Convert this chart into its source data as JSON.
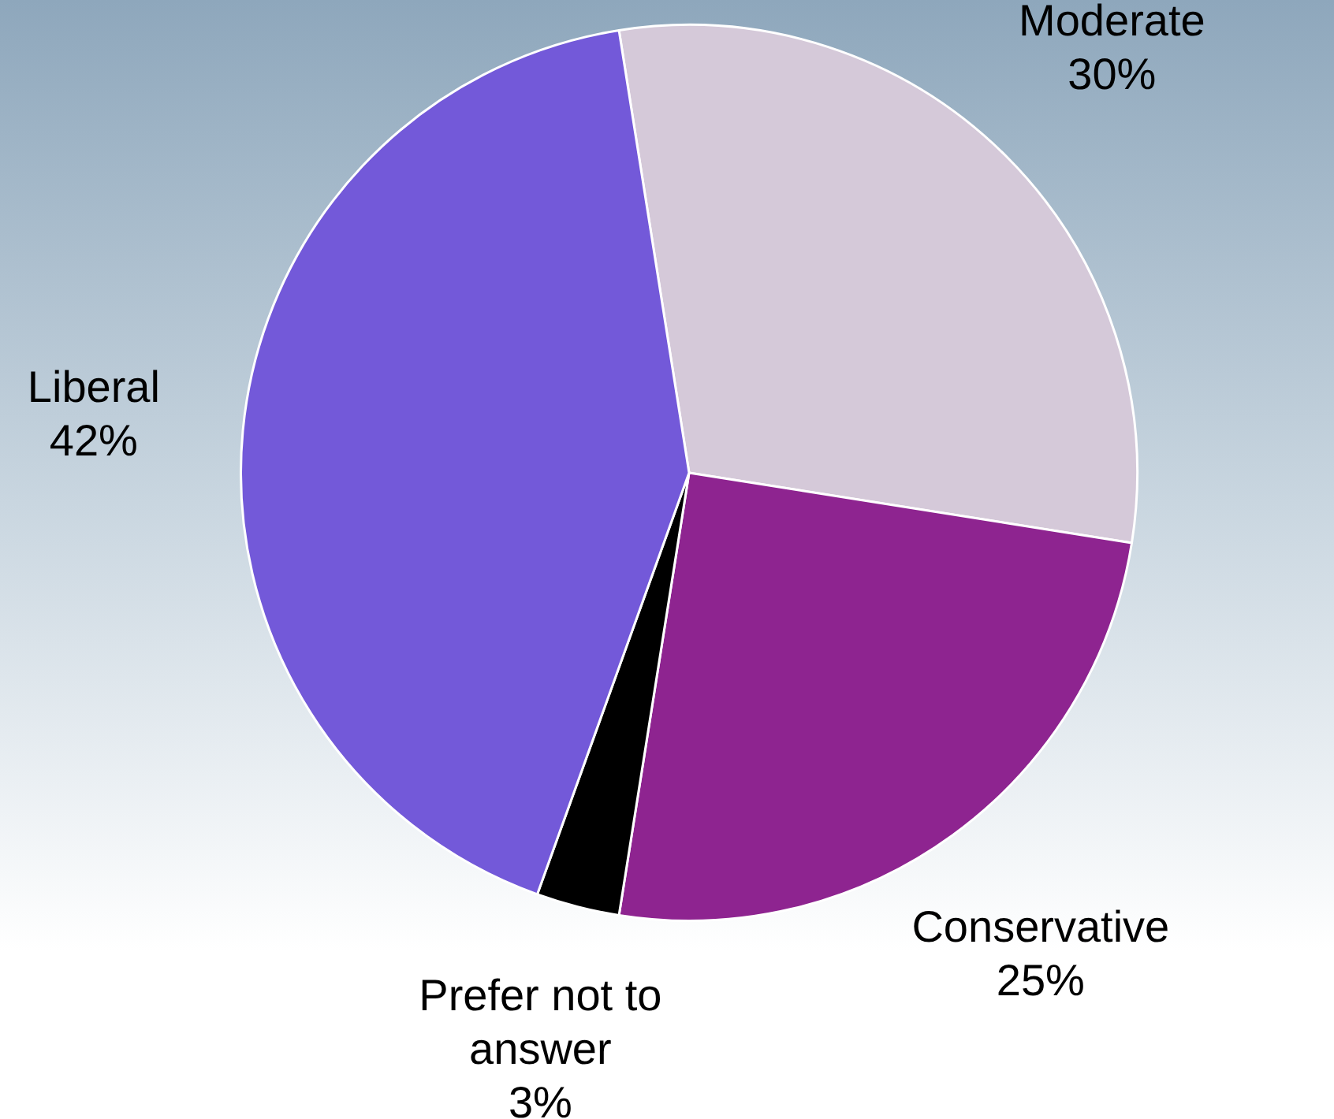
{
  "chart_data": {
    "type": "pie",
    "categories": [
      "Moderate",
      "Conservative",
      "Prefer not to answer",
      "Liberal"
    ],
    "values": [
      30,
      25,
      3,
      42
    ],
    "value_labels": [
      "30%",
      "25%",
      "3%",
      "42%"
    ],
    "colors": [
      "#d5c9d9",
      "#8e2490",
      "#000000",
      "#7359d9"
    ],
    "legend": false
  }
}
